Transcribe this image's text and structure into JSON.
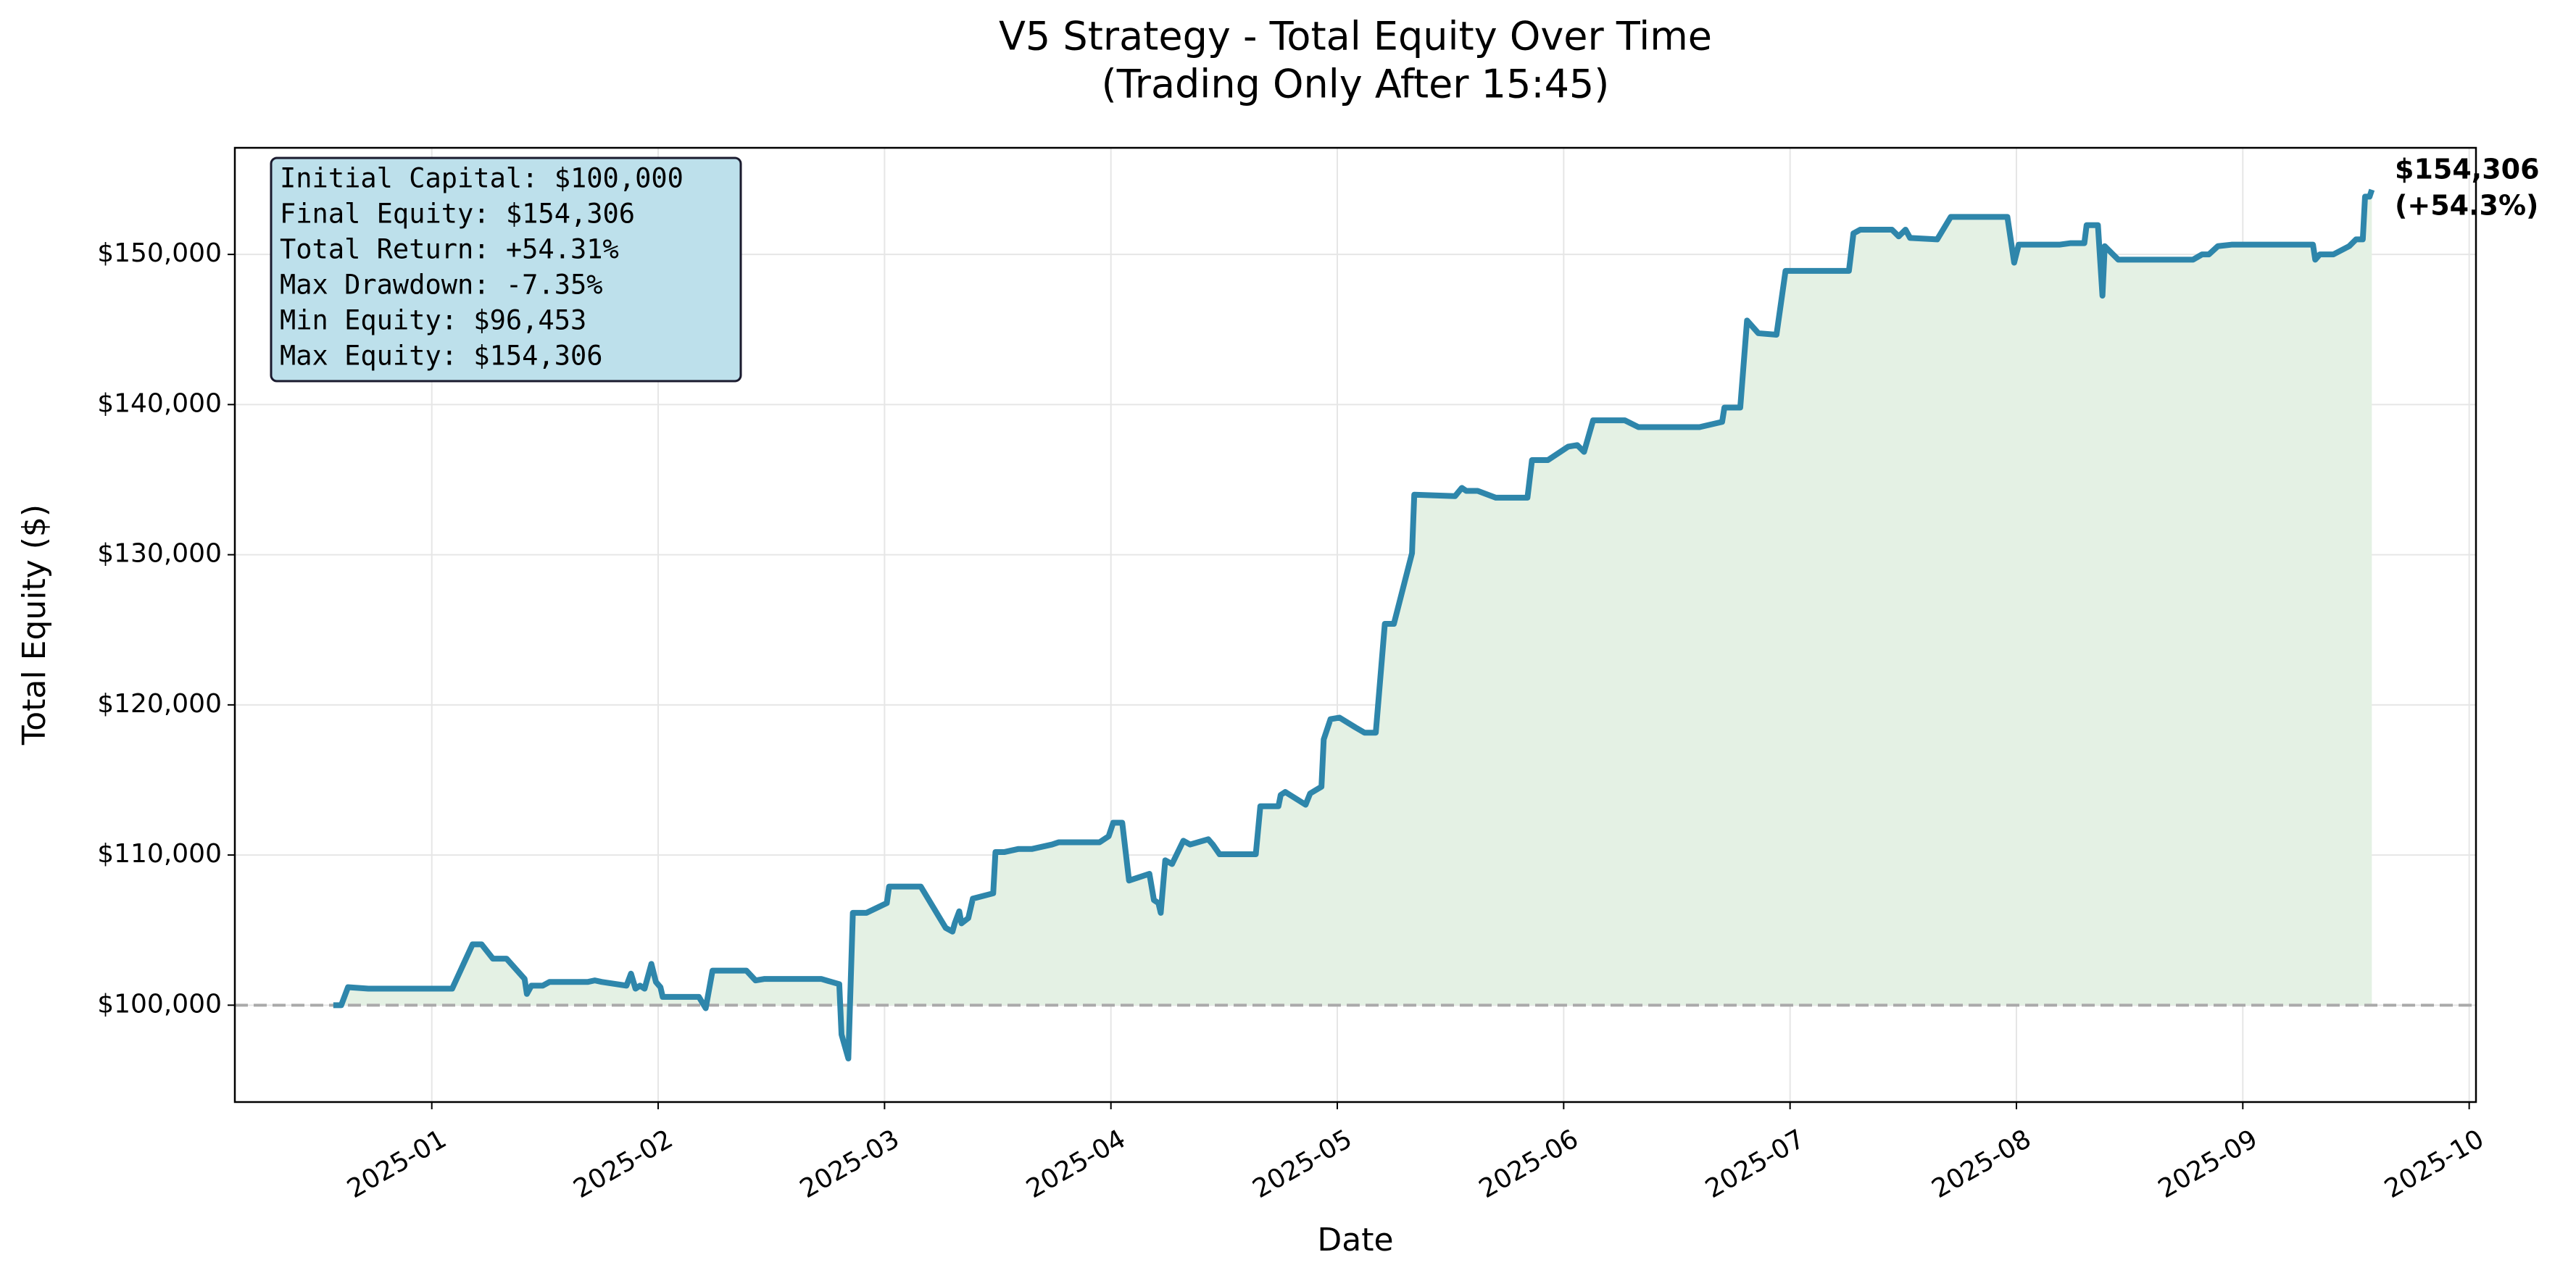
{
  "chart_data": {
    "type": "line",
    "title": [
      "V5 Strategy - Total Equity Over Time",
      "(Trading Only After 15:45)"
    ],
    "x_label": "Date",
    "y_label": "Total Equity ($)",
    "color": "#2e86ab",
    "fill_color": "#e4f1e4",
    "grid": true,
    "baseline": 100000,
    "x": [
      0.565,
      0.6,
      0.63,
      0.72,
      1.09,
      1.18,
      1.22,
      1.27,
      1.33,
      1.41,
      1.42,
      1.44,
      1.49,
      1.52,
      1.69,
      1.72,
      1.75,
      1.86,
      1.88,
      1.9,
      1.92,
      1.94,
      1.97,
      1.99,
      2.01,
      2.02,
      2.18,
      2.21,
      2.24,
      2.39,
      2.43,
      2.47,
      2.72,
      2.8,
      2.81,
      2.84,
      2.86,
      2.92,
      3.01,
      3.02,
      3.16,
      3.27,
      3.3,
      3.31,
      3.33,
      3.34,
      3.37,
      3.39,
      3.48,
      3.49,
      3.53,
      3.59,
      3.65,
      3.74,
      3.77,
      3.95,
      3.99,
      4.01,
      4.05,
      4.08,
      4.17,
      4.19,
      4.21,
      4.22,
      4.24,
      4.27,
      4.32,
      4.35,
      4.43,
      4.45,
      4.48,
      4.64,
      4.66,
      4.74,
      4.75,
      4.77,
      4.86,
      4.88,
      4.93,
      4.94,
      4.97,
      5.01,
      5.08,
      5.12,
      5.17,
      5.21,
      5.25,
      5.33,
      5.34,
      5.52,
      5.55,
      5.57,
      5.62,
      5.7,
      5.84,
      5.86,
      5.93,
      6.02,
      6.06,
      6.09,
      6.13,
      6.27,
      6.33,
      6.6,
      6.7,
      6.71,
      6.78,
      6.81,
      6.86,
      6.94,
      6.98,
      7.26,
      7.28,
      7.31,
      7.45,
      7.48,
      7.51,
      7.53,
      7.65,
      7.71,
      7.96,
      7.99,
      8.01,
      8.19,
      8.24,
      8.3,
      8.31,
      8.36,
      8.38,
      8.39,
      8.45,
      8.78,
      8.82,
      8.85,
      8.89,
      8.95,
      9.31,
      9.32,
      9.34,
      9.4,
      9.47,
      9.5,
      9.53,
      9.54,
      9.56,
      9.57
    ],
    "values": [
      100000,
      100000,
      101200,
      101100,
      101100,
      104050,
      104050,
      103100,
      103100,
      101750,
      100750,
      101300,
      101300,
      101550,
      101550,
      101650,
      101550,
      101300,
      102100,
      101100,
      101300,
      101100,
      102750,
      101550,
      101200,
      100550,
      100550,
      99800,
      102300,
      102300,
      101650,
      101750,
      101750,
      101400,
      98050,
      96453,
      106150,
      106150,
      106800,
      107900,
      107900,
      105150,
      104900,
      105450,
      106250,
      105450,
      105800,
      107100,
      107450,
      110200,
      110200,
      110400,
      110400,
      110700,
      110850,
      110850,
      111250,
      112150,
      112150,
      108300,
      108750,
      107000,
      106800,
      106150,
      109650,
      109400,
      110950,
      110700,
      111050,
      110700,
      110050,
      110050,
      113250,
      113250,
      114000,
      114200,
      113350,
      114100,
      114550,
      117700,
      119050,
      119150,
      118500,
      118150,
      118150,
      125400,
      125400,
      130100,
      134000,
      133900,
      134450,
      134250,
      134250,
      133800,
      133800,
      136300,
      136300,
      137200,
      137300,
      136850,
      138950,
      138950,
      138500,
      138500,
      138850,
      139800,
      139800,
      145600,
      144750,
      144650,
      148900,
      148900,
      151400,
      151650,
      151650,
      151200,
      151650,
      151100,
      151000,
      152500,
      152500,
      149450,
      150650,
      150650,
      150750,
      150750,
      151950,
      151950,
      147250,
      150550,
      149650,
      149650,
      150000,
      150000,
      150550,
      150650,
      150650,
      149650,
      150000,
      150000,
      150550,
      151000,
      151000,
      153850,
      153850,
      154306
    ],
    "xlim": [
      0.13,
      10.03
    ],
    "xticks": [
      {
        "value": 1,
        "label": "2025-01"
      },
      {
        "value": 2,
        "label": "2025-02"
      },
      {
        "value": 3,
        "label": "2025-03"
      },
      {
        "value": 4,
        "label": "2025-04"
      },
      {
        "value": 5,
        "label": "2025-05"
      },
      {
        "value": 6,
        "label": "2025-06"
      },
      {
        "value": 7,
        "label": "2025-07"
      },
      {
        "value": 8,
        "label": "2025-08"
      },
      {
        "value": 9,
        "label": "2025-09"
      },
      {
        "value": 10,
        "label": "2025-10"
      }
    ],
    "ylim": [
      93550,
      157100
    ],
    "yticks": [
      {
        "value": 100000,
        "label": "$100,000"
      },
      {
        "value": 110000,
        "label": "$110,000"
      },
      {
        "value": 120000,
        "label": "$120,000"
      },
      {
        "value": 130000,
        "label": "$130,000"
      },
      {
        "value": 140000,
        "label": "$140,000"
      },
      {
        "value": 150000,
        "label": "$150,000"
      }
    ],
    "stats_box": [
      "Initial Capital: $100,000",
      "Final Equity: $154,306",
      "Total Return: +54.31%",
      "Max Drawdown: -7.35%",
      "Min Equity: $96,453",
      "Max Equity: $154,306"
    ],
    "annotation": [
      "$154,306",
      "(+54.3%)"
    ],
    "annotation_color": "#000080",
    "stats_box_color": "#bde0eb"
  }
}
